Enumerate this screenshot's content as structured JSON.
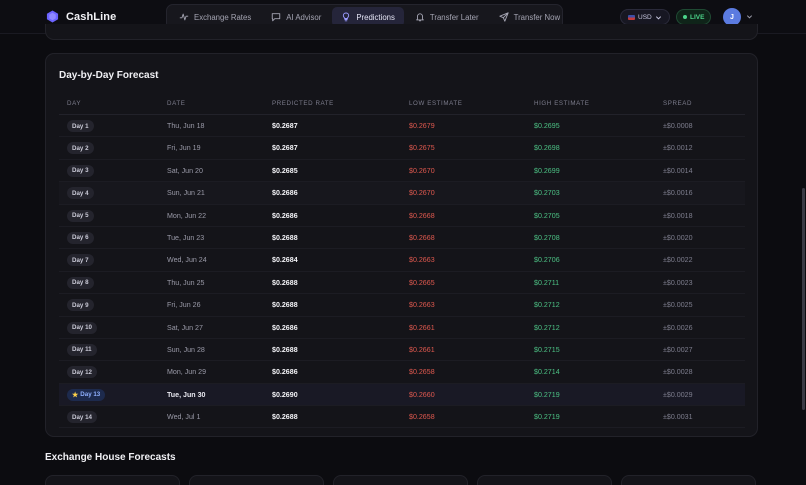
{
  "app": {
    "name": "CashLine"
  },
  "nav": {
    "items": [
      {
        "label": "Exchange Rates",
        "icon": "activity-icon",
        "active": false
      },
      {
        "label": "AI Advisor",
        "icon": "chat-icon",
        "active": false
      },
      {
        "label": "Predictions",
        "icon": "lightbulb-icon",
        "active": true
      },
      {
        "label": "Transfer Later",
        "icon": "bell-icon",
        "active": false
      },
      {
        "label": "Transfer Now",
        "icon": "send-icon",
        "active": false
      }
    ]
  },
  "header": {
    "currency": "USD",
    "live": "LIVE",
    "avatar_initial": "J"
  },
  "forecast": {
    "title": "Day-by-Day Forecast",
    "columns": {
      "day": "DAY",
      "date": "DATE",
      "rate": "PREDICTED RATE",
      "low": "LOW ESTIMATE",
      "high": "HIGH ESTIMATE",
      "spread": "SPREAD"
    },
    "rows": [
      {
        "day": "Day 1",
        "date": "Thu, Jun 18",
        "rate": "$0.2687",
        "low": "$0.2679",
        "high": "$0.2695",
        "spread": "±$0.0008"
      },
      {
        "day": "Day 2",
        "date": "Fri, Jun 19",
        "rate": "$0.2687",
        "low": "$0.2675",
        "high": "$0.2698",
        "spread": "±$0.0012"
      },
      {
        "day": "Day 3",
        "date": "Sat, Jun 20",
        "rate": "$0.2685",
        "low": "$0.2670",
        "high": "$0.2699",
        "spread": "±$0.0014"
      },
      {
        "day": "Day 4",
        "date": "Sun, Jun 21",
        "rate": "$0.2686",
        "low": "$0.2670",
        "high": "$0.2703",
        "spread": "±$0.0016"
      },
      {
        "day": "Day 5",
        "date": "Mon, Jun 22",
        "rate": "$0.2686",
        "low": "$0.2668",
        "high": "$0.2705",
        "spread": "±$0.0018"
      },
      {
        "day": "Day 6",
        "date": "Tue, Jun 23",
        "rate": "$0.2688",
        "low": "$0.2668",
        "high": "$0.2708",
        "spread": "±$0.0020"
      },
      {
        "day": "Day 7",
        "date": "Wed, Jun 24",
        "rate": "$0.2684",
        "low": "$0.2663",
        "high": "$0.2706",
        "spread": "±$0.0022"
      },
      {
        "day": "Day 8",
        "date": "Thu, Jun 25",
        "rate": "$0.2688",
        "low": "$0.2665",
        "high": "$0.2711",
        "spread": "±$0.0023"
      },
      {
        "day": "Day 9",
        "date": "Fri, Jun 26",
        "rate": "$0.2688",
        "low": "$0.2663",
        "high": "$0.2712",
        "spread": "±$0.0025"
      },
      {
        "day": "Day 10",
        "date": "Sat, Jun 27",
        "rate": "$0.2686",
        "low": "$0.2661",
        "high": "$0.2712",
        "spread": "±$0.0026"
      },
      {
        "day": "Day 11",
        "date": "Sun, Jun 28",
        "rate": "$0.2688",
        "low": "$0.2661",
        "high": "$0.2715",
        "spread": "±$0.0027"
      },
      {
        "day": "Day 12",
        "date": "Mon, Jun 29",
        "rate": "$0.2686",
        "low": "$0.2658",
        "high": "$0.2714",
        "spread": "±$0.0028"
      },
      {
        "day": "Day 13",
        "date": "Tue, Jun 30",
        "rate": "$0.2690",
        "low": "$0.2660",
        "high": "$0.2719",
        "spread": "±$0.0029",
        "best": true
      },
      {
        "day": "Day 14",
        "date": "Wed, Jul 1",
        "rate": "$0.2688",
        "low": "$0.2658",
        "high": "$0.2719",
        "spread": "±$0.0031"
      }
    ]
  },
  "houses": {
    "title": "Exchange House Forecasts"
  },
  "colors": {
    "accent": "#6b6bff",
    "low": "#e0594f",
    "high": "#4cc184",
    "live": "#4bd58a"
  }
}
